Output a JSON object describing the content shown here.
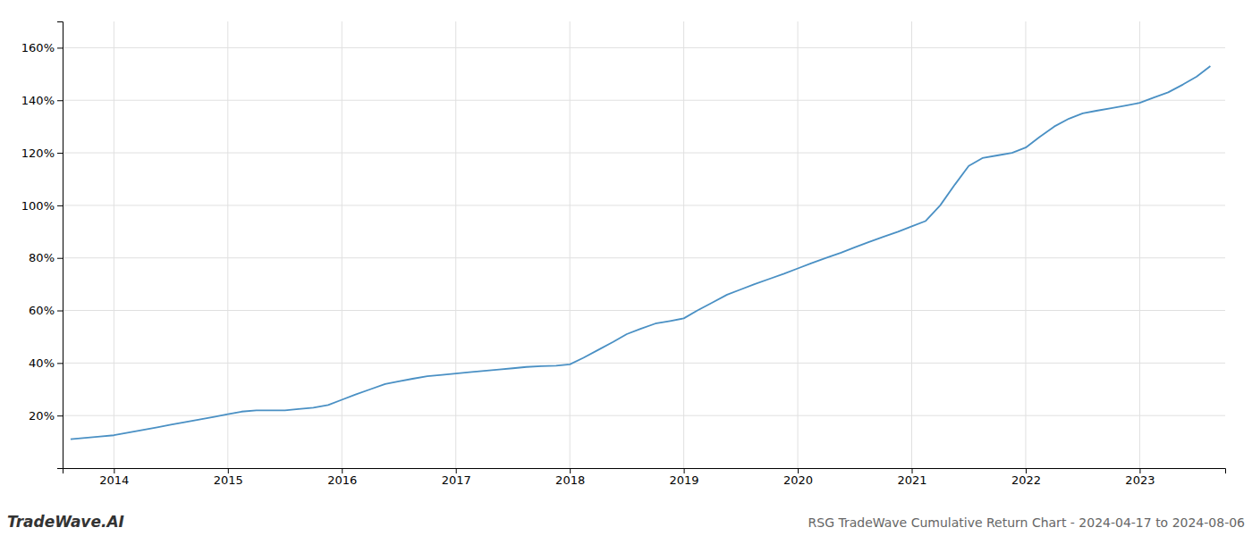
{
  "chart_data": {
    "type": "line",
    "title": "RSG TradeWave Cumulative Return Chart - 2024-04-17 to 2024-08-06",
    "annotations": [
      "TradeWave.AI"
    ],
    "color": "#4a90c4",
    "x": [
      2013.62,
      2013.75,
      2013.88,
      2014.0,
      2014.12,
      2014.25,
      2014.38,
      2014.5,
      2014.62,
      2014.75,
      2014.88,
      2015.0,
      2015.12,
      2015.25,
      2015.38,
      2015.5,
      2015.62,
      2015.75,
      2015.88,
      2016.0,
      2016.12,
      2016.25,
      2016.38,
      2016.5,
      2016.62,
      2016.75,
      2016.88,
      2017.0,
      2017.12,
      2017.25,
      2017.38,
      2017.5,
      2017.62,
      2017.75,
      2017.88,
      2018.0,
      2018.12,
      2018.25,
      2018.38,
      2018.5,
      2018.62,
      2018.75,
      2018.88,
      2019.0,
      2019.12,
      2019.25,
      2019.38,
      2019.5,
      2019.62,
      2019.75,
      2019.88,
      2020.0,
      2020.12,
      2020.25,
      2020.38,
      2020.5,
      2020.62,
      2020.75,
      2020.88,
      2021.0,
      2021.12,
      2021.25,
      2021.38,
      2021.5,
      2021.62,
      2021.75,
      2021.88,
      2022.0,
      2022.12,
      2022.25,
      2022.38,
      2022.5,
      2022.62,
      2022.75,
      2022.88,
      2023.0,
      2023.12,
      2023.25,
      2023.38,
      2023.5,
      2023.62
    ],
    "values": [
      11,
      11.5,
      12,
      12.5,
      13.5,
      14.5,
      15.5,
      16.5,
      17.5,
      18.5,
      19.5,
      20.5,
      21.5,
      22,
      22,
      22,
      22.5,
      23,
      24,
      26,
      28,
      30,
      32,
      33,
      34,
      35,
      35.5,
      36,
      36.5,
      37,
      37.5,
      38,
      38.5,
      38.8,
      39,
      39.5,
      42,
      45,
      48,
      51,
      53,
      55,
      56,
      57,
      60,
      63,
      66,
      68,
      70,
      72,
      74,
      76,
      78,
      80,
      82,
      84,
      86,
      88,
      90,
      92,
      94,
      100,
      108,
      115,
      118,
      119,
      120,
      122,
      126,
      130,
      133,
      135,
      136,
      137,
      138,
      139,
      141,
      143,
      146,
      149,
      153
    ],
    "xlim": [
      2013.55,
      2023.75
    ],
    "ylim": [
      0,
      170
    ],
    "xticks": [
      2014,
      2015,
      2016,
      2017,
      2018,
      2019,
      2020,
      2021,
      2022,
      2023
    ],
    "yticks": [
      {
        "value": 20,
        "label": "20%"
      },
      {
        "value": 40,
        "label": "40%"
      },
      {
        "value": 60,
        "label": "60%"
      },
      {
        "value": 80,
        "label": "80%"
      },
      {
        "value": 100,
        "label": "100%"
      },
      {
        "value": 120,
        "label": "120%"
      },
      {
        "value": 140,
        "label": "140%"
      },
      {
        "value": 160,
        "label": "160%"
      }
    ],
    "grid": true
  }
}
